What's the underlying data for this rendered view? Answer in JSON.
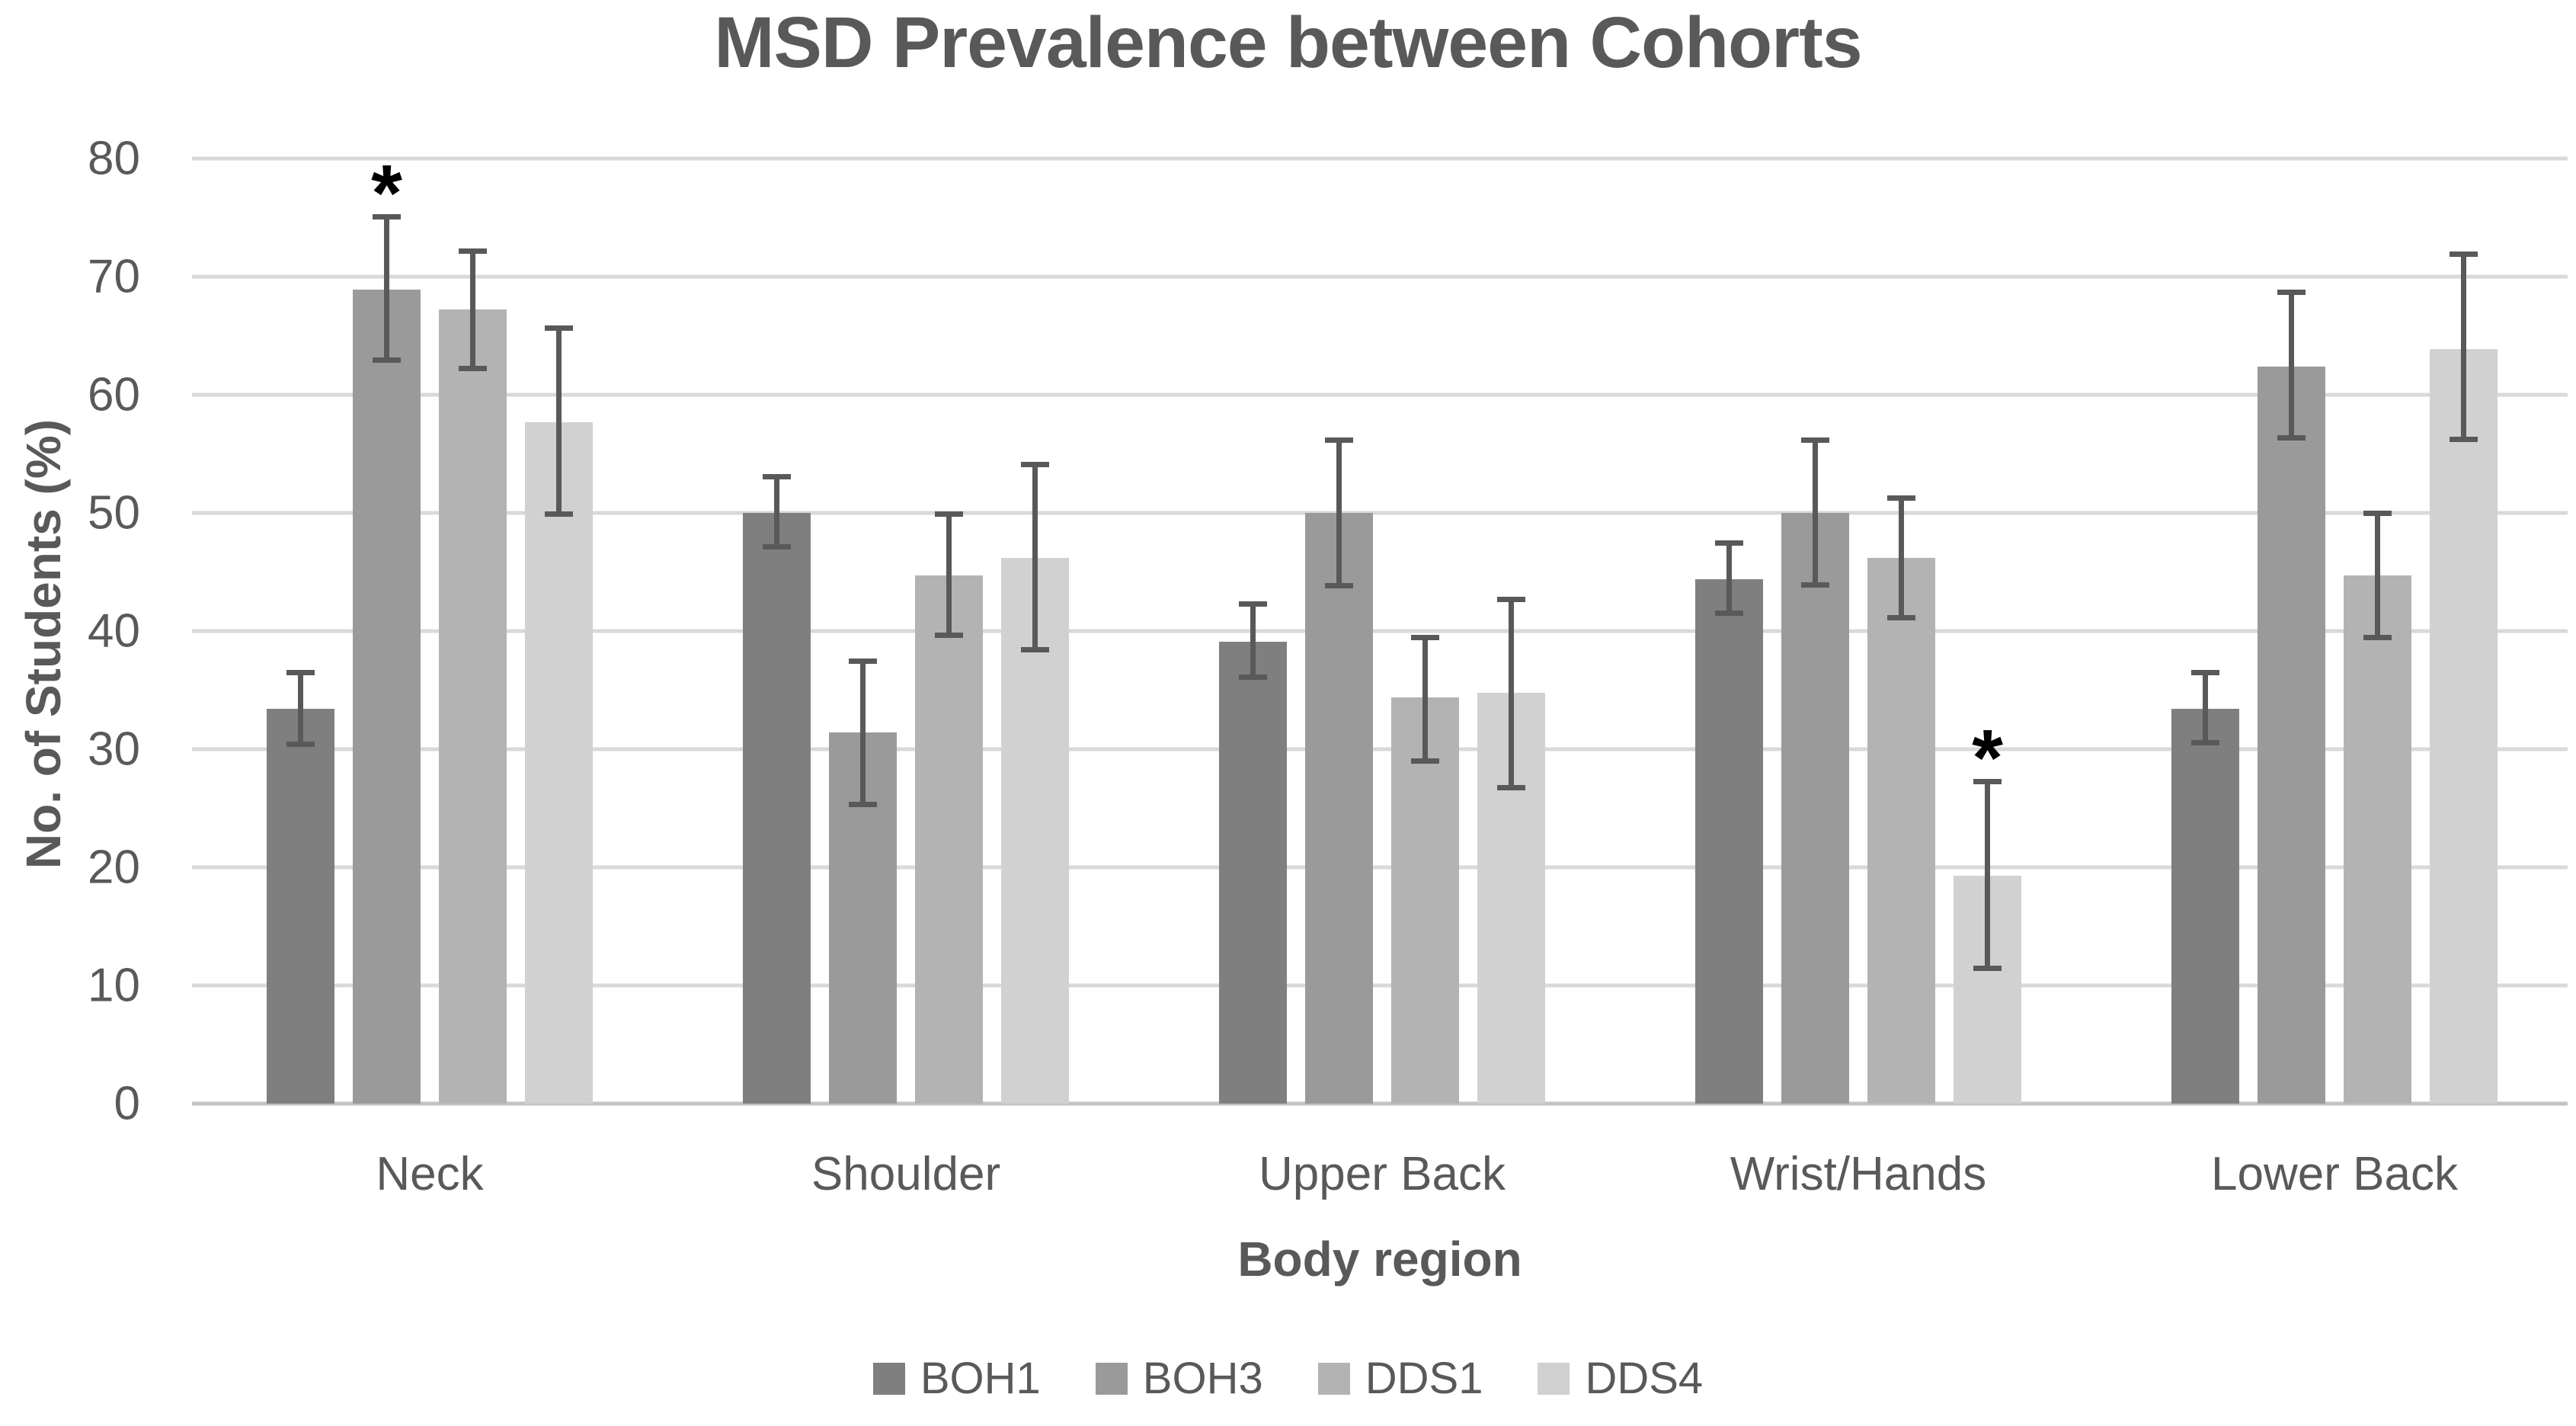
{
  "chart_data": {
    "type": "bar",
    "title": "MSD Prevalence between Cohorts",
    "xlabel": "Body region",
    "ylabel": "No. of Students (%)",
    "ylim": [
      0,
      80
    ],
    "ytick_step": 10,
    "ytick_labels": [
      "0",
      "10",
      "20",
      "30",
      "40",
      "50",
      "60",
      "70",
      "80"
    ],
    "grid": true,
    "legend_position": "bottom",
    "categories": [
      "Neck",
      "Shoulder",
      "Upper Back",
      "Wrist/Hands",
      "Lower Back"
    ],
    "series": [
      {
        "name": "BOH1",
        "color": "#7f7f7f",
        "values": [
          33.4,
          50.0,
          39.1,
          44.4,
          33.4
        ],
        "err_lo": [
          30.2,
          46.9,
          35.9,
          41.3,
          30.3
        ],
        "err_hi": [
          36.7,
          53.3,
          42.5,
          47.7,
          36.7
        ]
      },
      {
        "name": "BOH3",
        "color": "#9a9a9a",
        "values": [
          68.9,
          31.4,
          50.0,
          50.0,
          62.4
        ],
        "err_lo": [
          62.7,
          25.1,
          43.6,
          43.7,
          56.1
        ],
        "err_hi": [
          75.3,
          37.7,
          56.4,
          56.4,
          68.9
        ]
      },
      {
        "name": "DDS1",
        "color": "#b3b3b3",
        "values": [
          67.2,
          44.7,
          34.4,
          46.2,
          44.7
        ],
        "err_lo": [
          62.0,
          39.4,
          28.8,
          40.9,
          39.2
        ],
        "err_hi": [
          72.4,
          50.1,
          39.7,
          51.5,
          50.2
        ]
      },
      {
        "name": "DDS4",
        "color": "#d1d1d1",
        "values": [
          57.7,
          46.2,
          34.8,
          19.3,
          63.9
        ],
        "err_lo": [
          49.7,
          38.2,
          26.5,
          11.2,
          56.0
        ],
        "err_hi": [
          65.9,
          54.3,
          42.9,
          27.5,
          72.1
        ]
      }
    ],
    "annotations": [
      {
        "symbol": "*",
        "category": "Neck",
        "series": "BOH3"
      },
      {
        "symbol": "*",
        "category": "Wrist/Hands",
        "series": "DDS4"
      }
    ]
  },
  "style": {
    "background": "#ffffff",
    "gridline_color": "#d9d9d9",
    "baseline_color": "#c3c3c3",
    "error_bar_color": "#595959",
    "text_color": "#595959",
    "asterisk_color": "#000000"
  }
}
